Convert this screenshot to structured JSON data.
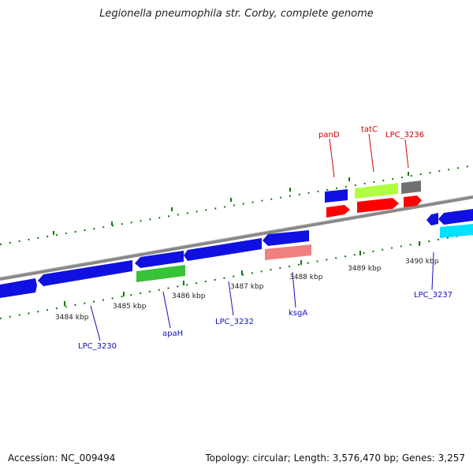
{
  "title": "Legionella pneumophila str. Corby, complete genome",
  "footer": {
    "accession": "Accession: NC_009494",
    "summary": "Topology: circular; Length: 3,576,470 bp; Genes: 3,257"
  },
  "scale": {
    "ticks": [
      "3484 kbp",
      "3485 kbp",
      "3486 kbp",
      "3487 kbp",
      "3488 kbp",
      "3489 kbp",
      "3490 kbp"
    ]
  },
  "genes": {
    "labeled": [
      {
        "name": "LPC_3230",
        "strand": "reverse",
        "color": "#1010e0"
      },
      {
        "name": "apaH",
        "strand": "forward",
        "color": "#38c238"
      },
      {
        "name": "LPC_3232",
        "strand": "reverse",
        "color": "#1010e0"
      },
      {
        "name": "ksgA",
        "strand": "forward",
        "color": "#f08080"
      },
      {
        "name": "panD",
        "strand": "reverse",
        "color": "#ff0000"
      },
      {
        "name": "tatC",
        "strand": "forward",
        "color": "#ff0000"
      },
      {
        "name": "LPC_3236",
        "strand": "forward",
        "color": "#ff0000"
      },
      {
        "name": "LPC_3237",
        "strand": "reverse",
        "color": "#1010e0"
      }
    ]
  },
  "colors": {
    "backbone": "#909090",
    "cds_reverse": "#1010e0",
    "cds_forward_red": "#ff0000",
    "rrna_like": "#b0ff40",
    "grey_feature": "#707070",
    "cyan_feature": "#00e0ff",
    "salmon_feature": "#f08080",
    "green_feature": "#38c238",
    "tick_green": "#0a7a0a",
    "label_blue": "#1010c0",
    "label_red": "#cc0000"
  }
}
